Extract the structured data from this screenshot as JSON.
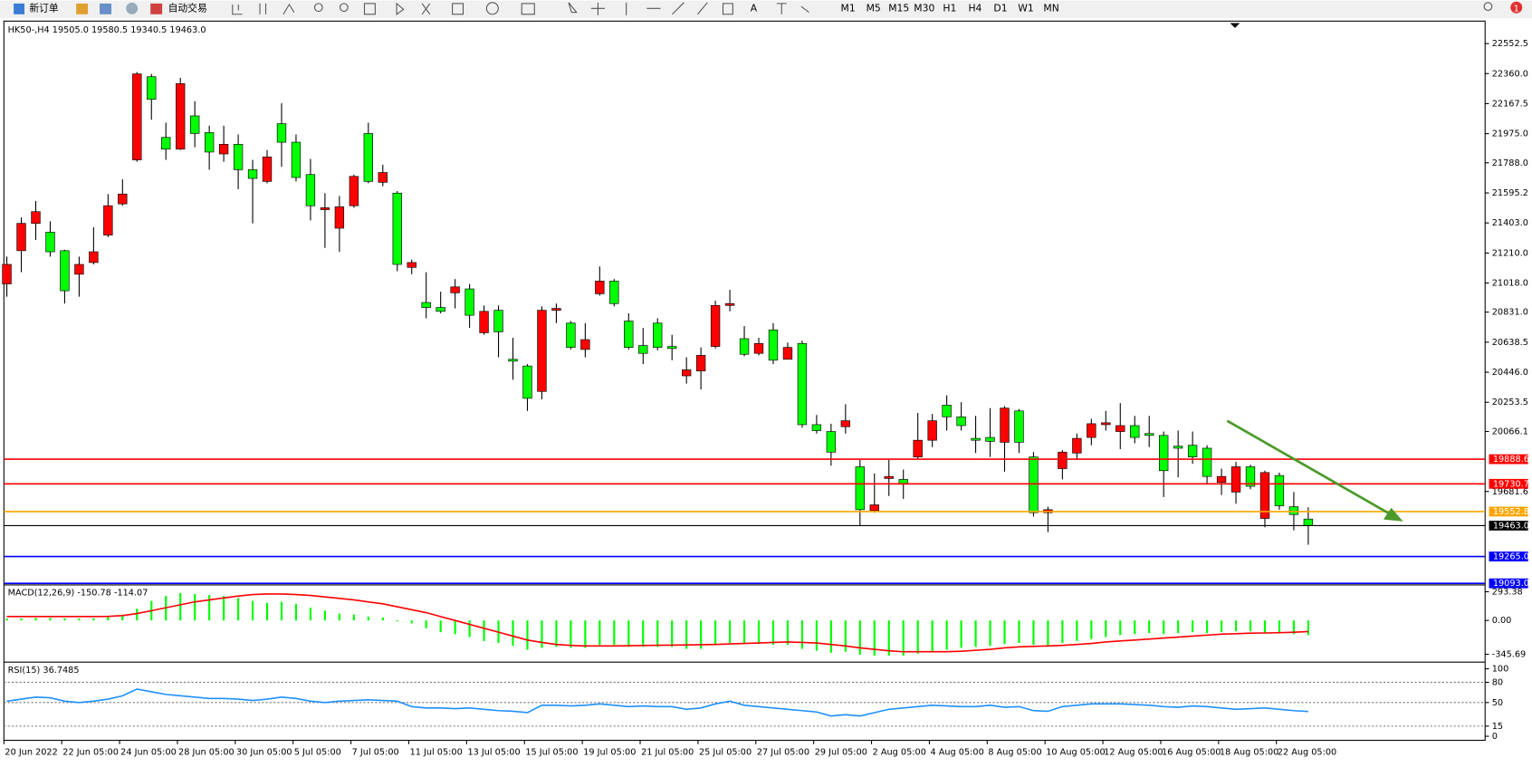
{
  "toolbar": {
    "buttons": [
      "新订单",
      "自动交易"
    ],
    "timeframes": [
      "M1",
      "M5",
      "M15",
      "M30",
      "H1",
      "H4",
      "D1",
      "W1",
      "MN"
    ],
    "badge": "1"
  },
  "chart": {
    "type": "candlestick",
    "header": "HK50-,H4  19505.0 19580.5 19340.5 19463.0",
    "ylim": [
      19089,
      22690
    ],
    "yticks": [
      22552.5,
      {
        "value": 22360.0,
        "label": "22360.0"
      },
      22167.5,
      {
        "value": 21975.0,
        "label": "21975.0"
      },
      {
        "value": 21788.0,
        "label": "21788.0"
      },
      21595.2,
      {
        "value": 21403.0,
        "label": "21403.0"
      },
      {
        "value": 21210.0,
        "label": "21210.0"
      },
      {
        "value": 21018.0,
        "label": "21018.0"
      },
      {
        "value": 20831.0,
        "label": "20831.0"
      },
      20638.5,
      {
        "value": 20446.0,
        "label": "20446.0"
      },
      20253.5,
      20066.1,
      19681.6
    ],
    "up_color": "#ff0000",
    "down_color": "#00ff00",
    "candles": {
      "open": [
        21012,
        21225,
        21400,
        21344,
        21225,
        21074,
        21149,
        21325,
        21525,
        21807,
        22340,
        21951,
        21876,
        22089,
        21982,
        21845,
        21907,
        21744,
        21669,
        22039,
        21920,
        21713,
        21488,
        21369,
        21513,
        21976,
        21663,
        21594,
        21118,
        20893,
        20861,
        20955,
        20980,
        20699,
        20843,
        20529,
        20486,
        20323,
        20843,
        20761,
        20592,
        20949,
        21030,
        20774,
        20617,
        20761,
        20611,
        20423,
        20454,
        20611,
        20874,
        20661,
        20567,
        20717,
        20529,
        20630,
        20110,
        20066,
        20097,
        19840,
        19559,
        19765,
        19759,
        19903,
        20010,
        20235,
        20160,
        20022,
        20028,
        19997,
        20198,
        19903,
        19546,
        19828,
        19928,
        20028,
        20110,
        20066,
        20104,
        20053,
        20041,
        19972,
        19978,
        19959,
        19740,
        19678,
        19840,
        19509,
        19784,
        19584,
        19505
      ],
      "high": [
        21187,
        21438,
        21544,
        21413,
        21231,
        21187,
        21375,
        21588,
        21682,
        22370,
        22358,
        22045,
        22333,
        22183,
        22026,
        22026,
        21970,
        21807,
        21870,
        22170,
        21970,
        21813,
        21594,
        21575,
        21713,
        22045,
        21776,
        21607,
        21168,
        21087,
        20962,
        21043,
        21012,
        20874,
        20874,
        20667,
        20498,
        20868,
        20886,
        20774,
        20761,
        21124,
        21043,
        20824,
        20730,
        20792,
        20686,
        20542,
        20605,
        20905,
        20974,
        20742,
        20667,
        20761,
        20636,
        20648,
        20172,
        20116,
        20241,
        19884,
        19797,
        19884,
        19822,
        20185,
        20179,
        20298,
        20254,
        20166,
        20216,
        20229,
        20210,
        19934,
        19584,
        19947,
        20053,
        20147,
        20198,
        20248,
        20166,
        20166,
        20066,
        20072,
        20066,
        19978,
        19828,
        19872,
        19853,
        19815,
        19803,
        19678,
        19580.5
      ],
      "low": [
        20930,
        21087,
        21294,
        21187,
        20886,
        20930,
        21137,
        21312,
        21513,
        21795,
        22064,
        21807,
        21870,
        21888,
        21744,
        21795,
        21619,
        21400,
        21657,
        21763,
        21669,
        21419,
        21243,
        21218,
        21500,
        21657,
        21638,
        21093,
        21074,
        20792,
        20824,
        20855,
        20730,
        20686,
        20542,
        20398,
        20198,
        20273,
        20761,
        20592,
        20542,
        20937,
        20868,
        20592,
        20498,
        20586,
        20523,
        20373,
        20335,
        20598,
        20836,
        20548,
        20554,
        20498,
        20529,
        20091,
        20053,
        19847,
        20053,
        19459,
        19546,
        19653,
        19634,
        19891,
        19966,
        20072,
        20072,
        19928,
        19903,
        19809,
        19928,
        19521,
        19421,
        19759,
        19884,
        19978,
        20072,
        19953,
        19991,
        19966,
        19646,
        19772,
        19859,
        19734,
        19659,
        19603,
        19696,
        19452,
        19565,
        19433,
        19340.5
      ],
      "close": [
        21137,
        21400,
        21475,
        21218,
        20968,
        21137,
        21218,
        21513,
        21588,
        22358,
        22195,
        21876,
        22296,
        21976,
        21857,
        21907,
        21744,
        21688,
        21826,
        21920,
        21694,
        21513,
        21500,
        21506,
        21701,
        21669,
        21726,
        21137,
        21149,
        20861,
        20836,
        20993,
        20811,
        20836,
        20705,
        20517,
        20279,
        20843,
        20855,
        20605,
        20655,
        21030,
        20886,
        20605,
        20567,
        20605,
        20598,
        20461,
        20554,
        20874,
        20886,
        20561,
        20630,
        20523,
        20605,
        20110,
        20072,
        19934,
        20135,
        19565,
        19596,
        19778,
        19728,
        20010,
        20135,
        20160,
        20104,
        20010,
        20003,
        20216,
        19997,
        19546,
        19565,
        19934,
        20022,
        20116,
        20122,
        20104,
        20028,
        20041,
        19815,
        19959,
        19903,
        19778,
        19778,
        19840,
        19715,
        19803,
        19590,
        19534,
        19463.0
      ]
    },
    "price_lines": [
      {
        "value": 19888.6,
        "color": "#ff0000"
      },
      {
        "value": 19730.7,
        "color": "#ff0000"
      },
      {
        "value": 19552.8,
        "color": "#ffa500"
      },
      {
        "value": {
          "value": 19463.0,
          "label": "19463.0"
        },
        "color": "#000000"
      },
      {
        "value": {
          "value": 19265.0,
          "label": "19265.0"
        },
        "color": "#0000ff"
      },
      {
        "value": {
          "value": 19093.0,
          "label": "19093.0"
        },
        "color": "#0000ff"
      }
    ],
    "x_labels": [
      "20 Jun 2022",
      "22 Jun 05:00",
      "24 Jun 05:00",
      "28 Jun 05:00",
      "30 Jun 05:00",
      "5 Jul 05:00",
      "7 Jul 05:00",
      "11 Jul 05:00",
      "13 Jul 05:00",
      "15 Jul 05:00",
      "19 Jul 05:00",
      "21 Jul 05:00",
      "25 Jul 05:00",
      "27 Jul 05:00",
      "29 Jul 05:00",
      "2 Aug 05:00",
      "4 Aug 05:00",
      "8 Aug 05:00",
      "10 Aug 05:00",
      "12 Aug 05:00",
      "16 Aug 05:00",
      "18 Aug 05:00",
      "22 Aug 05:00"
    ],
    "macd": {
      "header": "MACD(12,26,9) -150.78 -114.07",
      "ylim": [
        -406,
        343
      ],
      "yticks": [
        293.38,
        {
          "value": 0,
          "label": "0.00"
        },
        -345.69
      ],
      "histogram_color": "#00ff00",
      "signal_color": "#ff0000",
      "histogram": [
        20,
        22,
        25,
        25,
        22,
        20,
        22,
        40,
        60,
        120,
        200,
        250,
        280,
        270,
        260,
        250,
        230,
        200,
        180,
        190,
        170,
        130,
        100,
        70,
        60,
        40,
        30,
        -10,
        -30,
        -80,
        -120,
        -140,
        -170,
        -210,
        -230,
        -260,
        -300,
        -280,
        -270,
        -280,
        -280,
        -250,
        -250,
        -270,
        -270,
        -270,
        -270,
        -290,
        -290,
        -250,
        -230,
        -240,
        -240,
        -250,
        -250,
        -290,
        -310,
        -330,
        -320,
        -350,
        -360,
        -360,
        -360,
        -340,
        -320,
        -300,
        -280,
        -270,
        -260,
        -240,
        -230,
        -250,
        -260,
        -230,
        -210,
        -190,
        -170,
        -150,
        -140,
        -130,
        -140,
        -130,
        -120,
        -130,
        -120,
        -110,
        -110,
        -130,
        -130,
        -140,
        -150.78
      ],
      "signal": [
        40,
        40,
        40,
        40,
        40,
        40,
        40,
        42,
        50,
        70,
        100,
        130,
        160,
        190,
        210,
        230,
        250,
        265,
        270,
        270,
        265,
        255,
        240,
        225,
        210,
        190,
        170,
        140,
        110,
        80,
        40,
        0,
        -40,
        -80,
        -120,
        -160,
        -200,
        -225,
        -245,
        -255,
        -260,
        -260,
        -260,
        -258,
        -256,
        -254,
        -252,
        -250,
        -248,
        -245,
        -240,
        -235,
        -230,
        -225,
        -220,
        -225,
        -230,
        -245,
        -260,
        -280,
        -295,
        -310,
        -320,
        -320,
        -320,
        -320,
        -315,
        -305,
        -295,
        -280,
        -270,
        -265,
        -260,
        -255,
        -245,
        -235,
        -220,
        -210,
        -200,
        -190,
        -180,
        -170,
        -160,
        -150,
        -140,
        -135,
        -130,
        -128,
        -125,
        -120,
        -114.07
      ]
    },
    "rsi": {
      "header": "RSI(15) 36.7485",
      "ylim": [
        -6,
        107
      ],
      "yticks": [
        100,
        80,
        50,
        15,
        0
      ],
      "color": "#1e90ff",
      "values": [
        52,
        55,
        58,
        57,
        52,
        50,
        52,
        55,
        60,
        70,
        66,
        62,
        60,
        58,
        56,
        56,
        55,
        53,
        55,
        58,
        56,
        52,
        50,
        52,
        53,
        54,
        53,
        52,
        44,
        42,
        42,
        41,
        42,
        40,
        38,
        37,
        35,
        46,
        46,
        45,
        46,
        48,
        46,
        44,
        45,
        44,
        44,
        40,
        42,
        48,
        52,
        46,
        44,
        42,
        40,
        38,
        36,
        30,
        32,
        30,
        35,
        40,
        42,
        44,
        46,
        45,
        44,
        44,
        46,
        43,
        44,
        38,
        37,
        44,
        46,
        48,
        48,
        48,
        47,
        46,
        44,
        43,
        45,
        44,
        42,
        40,
        41,
        42,
        40,
        38,
        36.7485
      ]
    }
  }
}
